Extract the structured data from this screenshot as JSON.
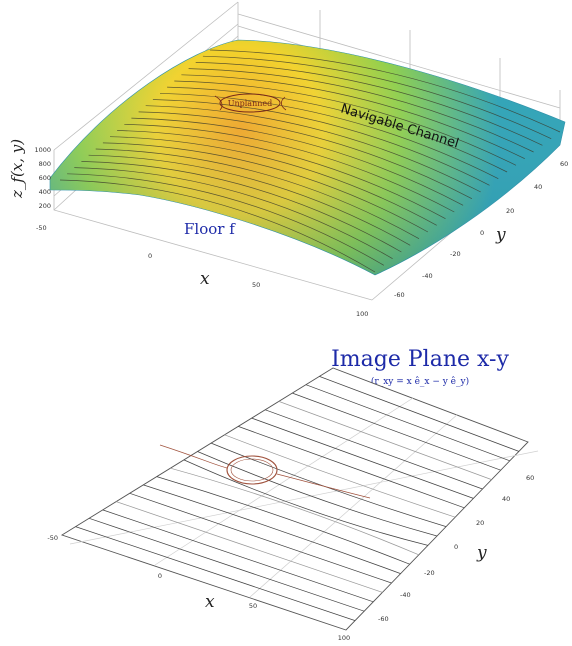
{
  "top_plot": {
    "z_label": "z_f(x, y)",
    "x_label": "x",
    "y_label": "y",
    "z_ticks": [
      "1000",
      "800",
      "600",
      "400",
      "200"
    ],
    "x_ticks": [
      "-50",
      "0",
      "50",
      "100"
    ],
    "y_ticks": [
      "60",
      "40",
      "20",
      "0",
      "-20",
      "-40",
      "-60"
    ],
    "floor_label": "Floor f",
    "channel_label": "Navigable Channel",
    "unplanned_label": "Unplanned",
    "colormap": [
      "#2aa1b5",
      "#8fcf4a",
      "#f2d22a",
      "#f5a623"
    ]
  },
  "bottom_plot": {
    "title": "Image Plane x-y",
    "subtitle": "(r_xy = x ê_x − y ê_y)",
    "x_label": "x",
    "y_label": "y",
    "x_ticks": [
      "-50",
      "0",
      "50",
      "100"
    ],
    "y_ticks": [
      "60",
      "40",
      "20",
      "0",
      "-20",
      "-40",
      "-60"
    ],
    "line_color": "#444444",
    "obstacle_color": "#a0523d"
  }
}
